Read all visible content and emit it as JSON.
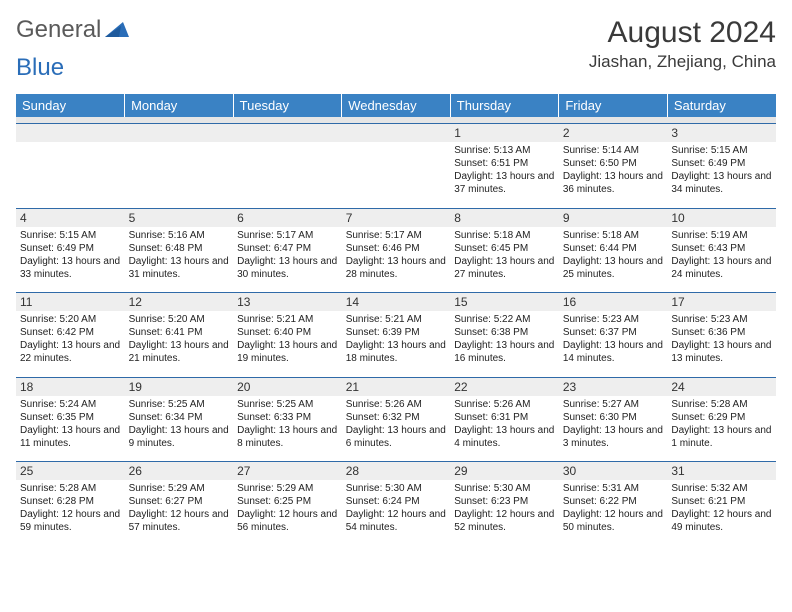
{
  "logo": {
    "text1": "General",
    "text2": "Blue"
  },
  "title": "August 2024",
  "location": "Jiashan, Zhejiang, China",
  "colors": {
    "header_bg": "#3a82c4",
    "header_text": "#ffffff",
    "daynum_bg": "#eeeeee",
    "border": "#2f6aa8",
    "title_color": "#3a3a3a",
    "logo_gray": "#5a5a5a",
    "logo_blue": "#2a6db8"
  },
  "day_headers": [
    "Sunday",
    "Monday",
    "Tuesday",
    "Wednesday",
    "Thursday",
    "Friday",
    "Saturday"
  ],
  "weeks": [
    [
      {
        "n": "",
        "d": ""
      },
      {
        "n": "",
        "d": ""
      },
      {
        "n": "",
        "d": ""
      },
      {
        "n": "",
        "d": ""
      },
      {
        "n": "1",
        "d": "Sunrise: 5:13 AM\nSunset: 6:51 PM\nDaylight: 13 hours and 37 minutes."
      },
      {
        "n": "2",
        "d": "Sunrise: 5:14 AM\nSunset: 6:50 PM\nDaylight: 13 hours and 36 minutes."
      },
      {
        "n": "3",
        "d": "Sunrise: 5:15 AM\nSunset: 6:49 PM\nDaylight: 13 hours and 34 minutes."
      }
    ],
    [
      {
        "n": "4",
        "d": "Sunrise: 5:15 AM\nSunset: 6:49 PM\nDaylight: 13 hours and 33 minutes."
      },
      {
        "n": "5",
        "d": "Sunrise: 5:16 AM\nSunset: 6:48 PM\nDaylight: 13 hours and 31 minutes."
      },
      {
        "n": "6",
        "d": "Sunrise: 5:17 AM\nSunset: 6:47 PM\nDaylight: 13 hours and 30 minutes."
      },
      {
        "n": "7",
        "d": "Sunrise: 5:17 AM\nSunset: 6:46 PM\nDaylight: 13 hours and 28 minutes."
      },
      {
        "n": "8",
        "d": "Sunrise: 5:18 AM\nSunset: 6:45 PM\nDaylight: 13 hours and 27 minutes."
      },
      {
        "n": "9",
        "d": "Sunrise: 5:18 AM\nSunset: 6:44 PM\nDaylight: 13 hours and 25 minutes."
      },
      {
        "n": "10",
        "d": "Sunrise: 5:19 AM\nSunset: 6:43 PM\nDaylight: 13 hours and 24 minutes."
      }
    ],
    [
      {
        "n": "11",
        "d": "Sunrise: 5:20 AM\nSunset: 6:42 PM\nDaylight: 13 hours and 22 minutes."
      },
      {
        "n": "12",
        "d": "Sunrise: 5:20 AM\nSunset: 6:41 PM\nDaylight: 13 hours and 21 minutes."
      },
      {
        "n": "13",
        "d": "Sunrise: 5:21 AM\nSunset: 6:40 PM\nDaylight: 13 hours and 19 minutes."
      },
      {
        "n": "14",
        "d": "Sunrise: 5:21 AM\nSunset: 6:39 PM\nDaylight: 13 hours and 18 minutes."
      },
      {
        "n": "15",
        "d": "Sunrise: 5:22 AM\nSunset: 6:38 PM\nDaylight: 13 hours and 16 minutes."
      },
      {
        "n": "16",
        "d": "Sunrise: 5:23 AM\nSunset: 6:37 PM\nDaylight: 13 hours and 14 minutes."
      },
      {
        "n": "17",
        "d": "Sunrise: 5:23 AM\nSunset: 6:36 PM\nDaylight: 13 hours and 13 minutes."
      }
    ],
    [
      {
        "n": "18",
        "d": "Sunrise: 5:24 AM\nSunset: 6:35 PM\nDaylight: 13 hours and 11 minutes."
      },
      {
        "n": "19",
        "d": "Sunrise: 5:25 AM\nSunset: 6:34 PM\nDaylight: 13 hours and 9 minutes."
      },
      {
        "n": "20",
        "d": "Sunrise: 5:25 AM\nSunset: 6:33 PM\nDaylight: 13 hours and 8 minutes."
      },
      {
        "n": "21",
        "d": "Sunrise: 5:26 AM\nSunset: 6:32 PM\nDaylight: 13 hours and 6 minutes."
      },
      {
        "n": "22",
        "d": "Sunrise: 5:26 AM\nSunset: 6:31 PM\nDaylight: 13 hours and 4 minutes."
      },
      {
        "n": "23",
        "d": "Sunrise: 5:27 AM\nSunset: 6:30 PM\nDaylight: 13 hours and 3 minutes."
      },
      {
        "n": "24",
        "d": "Sunrise: 5:28 AM\nSunset: 6:29 PM\nDaylight: 13 hours and 1 minute."
      }
    ],
    [
      {
        "n": "25",
        "d": "Sunrise: 5:28 AM\nSunset: 6:28 PM\nDaylight: 12 hours and 59 minutes."
      },
      {
        "n": "26",
        "d": "Sunrise: 5:29 AM\nSunset: 6:27 PM\nDaylight: 12 hours and 57 minutes."
      },
      {
        "n": "27",
        "d": "Sunrise: 5:29 AM\nSunset: 6:25 PM\nDaylight: 12 hours and 56 minutes."
      },
      {
        "n": "28",
        "d": "Sunrise: 5:30 AM\nSunset: 6:24 PM\nDaylight: 12 hours and 54 minutes."
      },
      {
        "n": "29",
        "d": "Sunrise: 5:30 AM\nSunset: 6:23 PM\nDaylight: 12 hours and 52 minutes."
      },
      {
        "n": "30",
        "d": "Sunrise: 5:31 AM\nSunset: 6:22 PM\nDaylight: 12 hours and 50 minutes."
      },
      {
        "n": "31",
        "d": "Sunrise: 5:32 AM\nSunset: 6:21 PM\nDaylight: 12 hours and 49 minutes."
      }
    ]
  ]
}
